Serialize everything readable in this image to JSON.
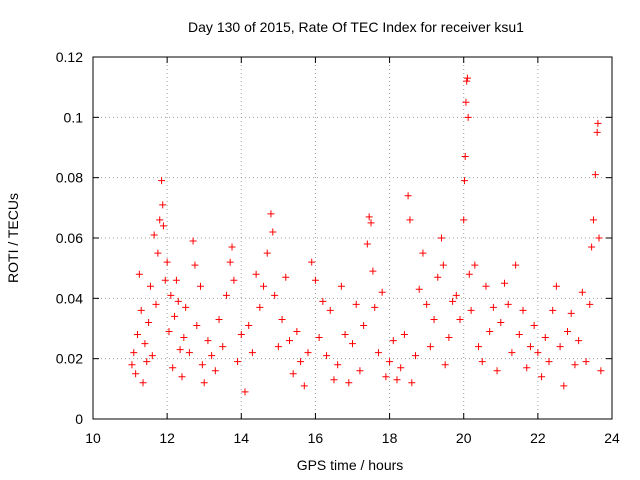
{
  "chart_data": {
    "type": "scatter",
    "title": "Day 130 of 2015, Rate Of TEC Index for receiver ksu1",
    "xlabel": "GPS time / hours",
    "ylabel": "ROTI / TECUs",
    "xlim": [
      10,
      24
    ],
    "ylim": [
      0,
      0.12
    ],
    "xticks": [
      10,
      12,
      14,
      16,
      18,
      20,
      22,
      24
    ],
    "xtick_labels": [
      "10",
      "12",
      "14",
      "16",
      "18",
      "20",
      "22",
      "24"
    ],
    "yticks": [
      0,
      0.02,
      0.04,
      0.06,
      0.08,
      0.1,
      0.12
    ],
    "ytick_labels": [
      "0",
      "0.02",
      "0.04",
      "0.06",
      "0.08",
      "0.1",
      "0.12"
    ],
    "grid": true,
    "marker": "plus",
    "color": "#ff0000",
    "series": [
      {
        "name": "ROTI",
        "points": [
          [
            11.05,
            0.018
          ],
          [
            11.1,
            0.022
          ],
          [
            11.15,
            0.015
          ],
          [
            11.2,
            0.028
          ],
          [
            11.25,
            0.048
          ],
          [
            11.3,
            0.036
          ],
          [
            11.35,
            0.012
          ],
          [
            11.4,
            0.025
          ],
          [
            11.45,
            0.019
          ],
          [
            11.5,
            0.032
          ],
          [
            11.55,
            0.044
          ],
          [
            11.6,
            0.021
          ],
          [
            11.65,
            0.061
          ],
          [
            11.7,
            0.038
          ],
          [
            11.75,
            0.055
          ],
          [
            11.8,
            0.066
          ],
          [
            11.85,
            0.079
          ],
          [
            11.88,
            0.071
          ],
          [
            11.9,
            0.064
          ],
          [
            11.95,
            0.046
          ],
          [
            12.0,
            0.052
          ],
          [
            12.05,
            0.029
          ],
          [
            12.1,
            0.041
          ],
          [
            12.15,
            0.017
          ],
          [
            12.2,
            0.034
          ],
          [
            12.25,
            0.046
          ],
          [
            12.3,
            0.039
          ],
          [
            12.35,
            0.023
          ],
          [
            12.4,
            0.014
          ],
          [
            12.45,
            0.027
          ],
          [
            12.5,
            0.037
          ],
          [
            12.6,
            0.022
          ],
          [
            12.7,
            0.059
          ],
          [
            12.75,
            0.051
          ],
          [
            12.8,
            0.031
          ],
          [
            12.9,
            0.044
          ],
          [
            12.95,
            0.018
          ],
          [
            13.0,
            0.012
          ],
          [
            13.1,
            0.026
          ],
          [
            13.2,
            0.021
          ],
          [
            13.3,
            0.016
          ],
          [
            13.4,
            0.033
          ],
          [
            13.5,
            0.024
          ],
          [
            13.6,
            0.041
          ],
          [
            13.7,
            0.052
          ],
          [
            13.75,
            0.057
          ],
          [
            13.8,
            0.046
          ],
          [
            13.9,
            0.019
          ],
          [
            14.0,
            0.028
          ],
          [
            14.1,
            0.009
          ],
          [
            14.2,
            0.031
          ],
          [
            14.3,
            0.022
          ],
          [
            14.4,
            0.048
          ],
          [
            14.5,
            0.037
          ],
          [
            14.6,
            0.044
          ],
          [
            14.7,
            0.055
          ],
          [
            14.8,
            0.068
          ],
          [
            14.85,
            0.062
          ],
          [
            14.9,
            0.041
          ],
          [
            15.0,
            0.024
          ],
          [
            15.1,
            0.033
          ],
          [
            15.2,
            0.047
          ],
          [
            15.3,
            0.026
          ],
          [
            15.4,
            0.015
          ],
          [
            15.5,
            0.029
          ],
          [
            15.6,
            0.019
          ],
          [
            15.7,
            0.011
          ],
          [
            15.8,
            0.022
          ],
          [
            15.9,
            0.052
          ],
          [
            16.0,
            0.046
          ],
          [
            16.1,
            0.027
          ],
          [
            16.2,
            0.039
          ],
          [
            16.3,
            0.021
          ],
          [
            16.4,
            0.036
          ],
          [
            16.5,
            0.013
          ],
          [
            16.6,
            0.018
          ],
          [
            16.7,
            0.044
          ],
          [
            16.8,
            0.028
          ],
          [
            16.9,
            0.012
          ],
          [
            17.0,
            0.025
          ],
          [
            17.1,
            0.038
          ],
          [
            17.2,
            0.016
          ],
          [
            17.3,
            0.031
          ],
          [
            17.4,
            0.058
          ],
          [
            17.45,
            0.067
          ],
          [
            17.5,
            0.065
          ],
          [
            17.55,
            0.049
          ],
          [
            17.6,
            0.037
          ],
          [
            17.7,
            0.022
          ],
          [
            17.8,
            0.042
          ],
          [
            17.9,
            0.014
          ],
          [
            18.0,
            0.019
          ],
          [
            18.1,
            0.026
          ],
          [
            18.2,
            0.013
          ],
          [
            18.3,
            0.017
          ],
          [
            18.4,
            0.028
          ],
          [
            18.5,
            0.074
          ],
          [
            18.55,
            0.066
          ],
          [
            18.6,
            0.012
          ],
          [
            18.7,
            0.021
          ],
          [
            18.8,
            0.043
          ],
          [
            18.9,
            0.055
          ],
          [
            19.0,
            0.038
          ],
          [
            19.1,
            0.024
          ],
          [
            19.2,
            0.033
          ],
          [
            19.3,
            0.047
          ],
          [
            19.4,
            0.06
          ],
          [
            19.45,
            0.051
          ],
          [
            19.5,
            0.018
          ],
          [
            19.6,
            0.027
          ],
          [
            19.7,
            0.039
          ],
          [
            19.8,
            0.041
          ],
          [
            19.9,
            0.033
          ],
          [
            20.0,
            0.066
          ],
          [
            20.02,
            0.079
          ],
          [
            20.04,
            0.087
          ],
          [
            20.06,
            0.105
          ],
          [
            20.08,
            0.112
          ],
          [
            20.1,
            0.113
          ],
          [
            20.12,
            0.1
          ],
          [
            20.15,
            0.048
          ],
          [
            20.2,
            0.036
          ],
          [
            20.3,
            0.051
          ],
          [
            20.4,
            0.024
          ],
          [
            20.5,
            0.019
          ],
          [
            20.6,
            0.044
          ],
          [
            20.7,
            0.029
          ],
          [
            20.8,
            0.037
          ],
          [
            20.9,
            0.016
          ],
          [
            21.0,
            0.032
          ],
          [
            21.1,
            0.045
          ],
          [
            21.2,
            0.038
          ],
          [
            21.3,
            0.022
          ],
          [
            21.4,
            0.051
          ],
          [
            21.5,
            0.028
          ],
          [
            21.6,
            0.036
          ],
          [
            21.7,
            0.017
          ],
          [
            21.8,
            0.024
          ],
          [
            21.9,
            0.031
          ],
          [
            22.0,
            0.022
          ],
          [
            22.1,
            0.014
          ],
          [
            22.2,
            0.027
          ],
          [
            22.3,
            0.019
          ],
          [
            22.4,
            0.036
          ],
          [
            22.5,
            0.044
          ],
          [
            22.6,
            0.024
          ],
          [
            22.7,
            0.011
          ],
          [
            22.8,
            0.029
          ],
          [
            22.9,
            0.035
          ],
          [
            23.0,
            0.018
          ],
          [
            23.1,
            0.026
          ],
          [
            23.2,
            0.042
          ],
          [
            23.3,
            0.019
          ],
          [
            23.4,
            0.038
          ],
          [
            23.45,
            0.057
          ],
          [
            23.5,
            0.066
          ],
          [
            23.55,
            0.081
          ],
          [
            23.6,
            0.095
          ],
          [
            23.62,
            0.098
          ],
          [
            23.65,
            0.06
          ],
          [
            23.7,
            0.016
          ]
        ]
      }
    ]
  }
}
